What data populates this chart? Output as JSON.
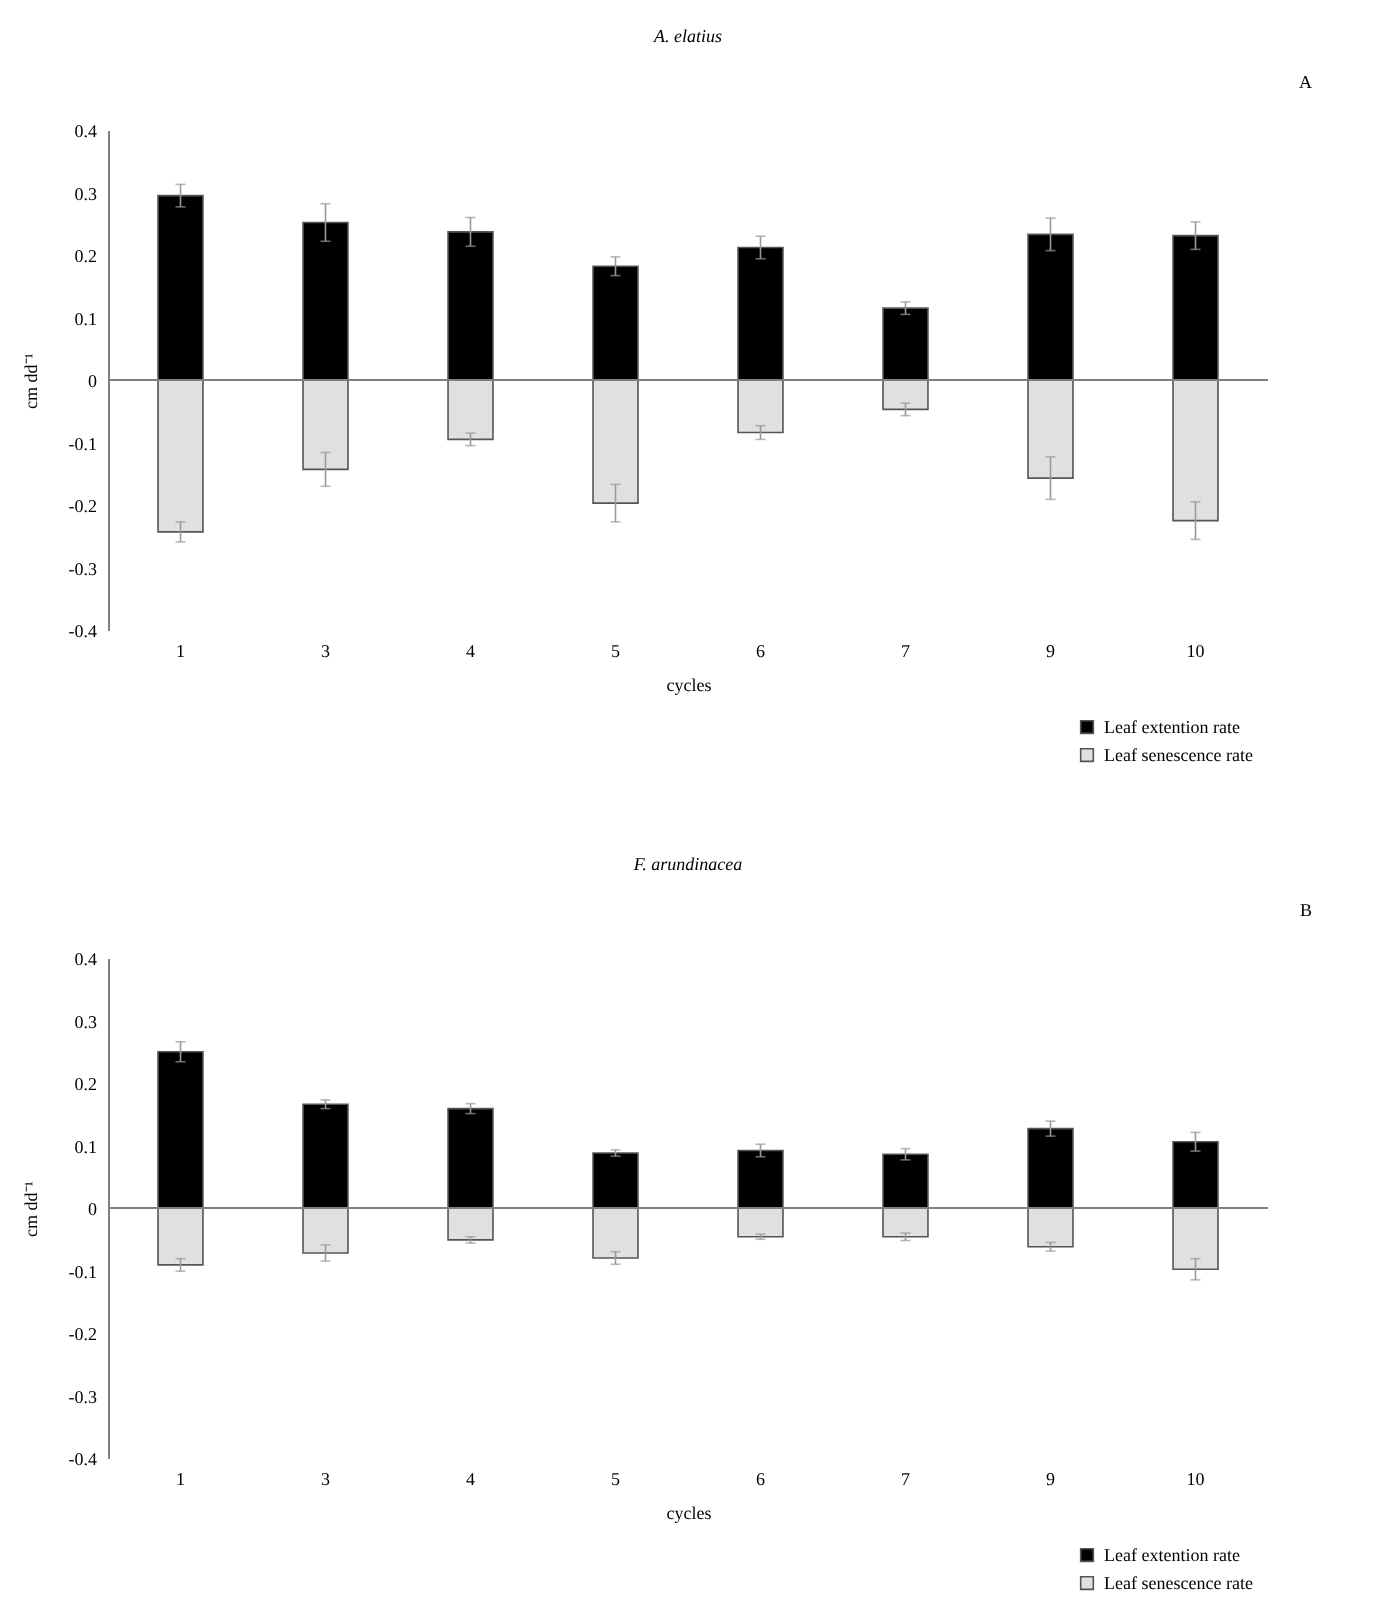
{
  "chart_data": [
    {
      "type": "bar",
      "title": "A. elatius",
      "xlabel": "cycles",
      "ylabel": "cm dd⁻¹",
      "annotations": [
        "A"
      ],
      "categories": [
        "1",
        "3",
        "4",
        "5",
        "6",
        "7",
        "9",
        "10"
      ],
      "stacked": true,
      "ylim": [
        -0.4,
        0.4
      ],
      "yticks": [
        -0.4,
        -0.3,
        -0.2,
        -0.1,
        0,
        0.1,
        0.2,
        0.3,
        0.4
      ],
      "legend": "bottom right",
      "ref_lines": [
        {
          "axis": "y",
          "value": 0,
          "color": "#808080"
        }
      ],
      "series": [
        {
          "name": "Leaf extention rate",
          "color": "#000000",
          "values": [
            0.295,
            0.252,
            0.237,
            0.182,
            0.212,
            0.115,
            0.233,
            0.231
          ],
          "errors": [
            0.018,
            0.03,
            0.023,
            0.015,
            0.018,
            0.01,
            0.026,
            0.022
          ]
        },
        {
          "name": "Leaf senescence rate",
          "color": "#e0e0e0",
          "values": [
            -0.243,
            -0.143,
            -0.095,
            -0.197,
            -0.084,
            -0.047,
            -0.157,
            -0.225
          ],
          "errors": [
            0.016,
            0.027,
            0.01,
            0.03,
            0.011,
            0.01,
            0.034,
            0.03
          ]
        }
      ]
    },
    {
      "type": "bar",
      "title": "F. arundinacea",
      "xlabel": "cycles",
      "ylabel": "cm dd⁻¹",
      "annotations": [
        "B"
      ],
      "categories": [
        "1",
        "3",
        "4",
        "5",
        "6",
        "7",
        "9",
        "10"
      ],
      "stacked": true,
      "ylim": [
        -0.4,
        0.4
      ],
      "yticks": [
        -0.4,
        -0.3,
        -0.2,
        -0.1,
        0,
        0.1,
        0.2,
        0.3,
        0.4
      ],
      "legend": "bottom right",
      "ref_lines": [
        {
          "axis": "y",
          "value": 0,
          "color": "#808080"
        }
      ],
      "series": [
        {
          "name": "Leaf extention rate",
          "color": "#000000",
          "values": [
            0.25,
            0.166,
            0.159,
            0.088,
            0.092,
            0.086,
            0.127,
            0.106
          ],
          "errors": [
            0.016,
            0.007,
            0.008,
            0.005,
            0.01,
            0.009,
            0.012,
            0.015
          ]
        },
        {
          "name": "Leaf senescence rate",
          "color": "#e0e0e0",
          "values": [
            -0.091,
            -0.072,
            -0.051,
            -0.08,
            -0.046,
            -0.046,
            -0.062,
            -0.098
          ],
          "errors": [
            0.01,
            0.013,
            0.005,
            0.01,
            0.004,
            0.006,
            0.007,
            0.017
          ]
        }
      ]
    }
  ]
}
